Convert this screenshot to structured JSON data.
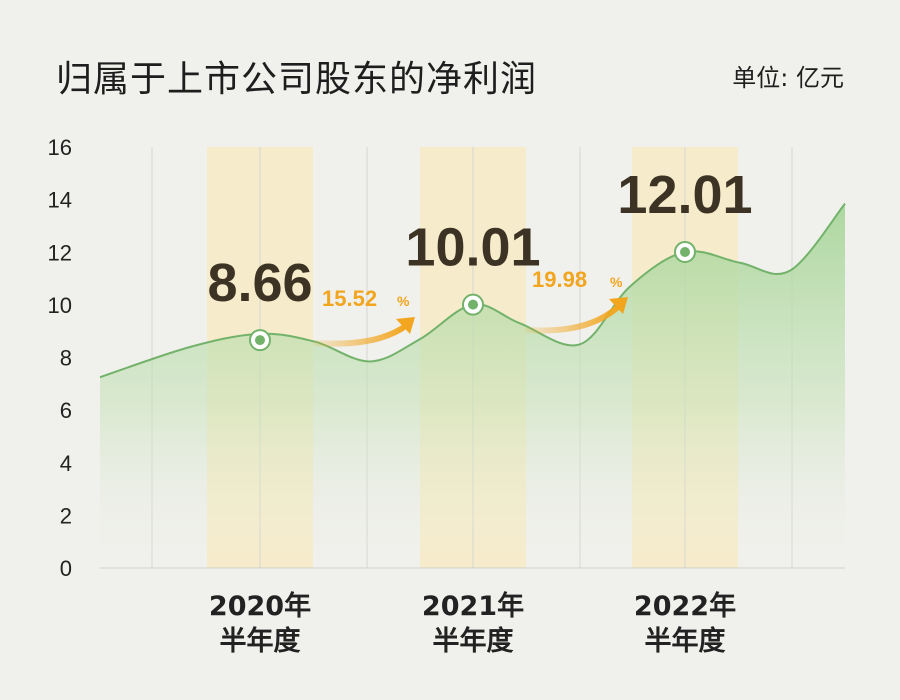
{
  "chart_data": {
    "type": "area",
    "title": "归属于上市公司股东的净利润",
    "unit_label": "单位: 亿元",
    "ylim": [
      0,
      16
    ],
    "yticks": [
      "0",
      "2",
      "4",
      "6",
      "8",
      "10",
      "12",
      "14",
      "16"
    ],
    "categories": [
      {
        "line1": "2020年",
        "line2": "半年度"
      },
      {
        "line1": "2021年",
        "line2": "半年度"
      },
      {
        "line1": "2022年",
        "line2": "半年度"
      }
    ],
    "values": [
      8.66,
      10.01,
      12.01
    ],
    "value_labels": [
      "8.66",
      "10.01",
      "12.01"
    ],
    "growth": [
      {
        "value": "15.52",
        "pct": "%"
      },
      {
        "value": "19.98",
        "pct": "%"
      }
    ],
    "grid": true,
    "colors": {
      "line": "#72b26a",
      "fill": "#a9d69b",
      "highlight": "#f6eccb",
      "growth": "#f2a51e",
      "point_outer": "#ffffff",
      "point_inner": "#72b26a"
    }
  }
}
